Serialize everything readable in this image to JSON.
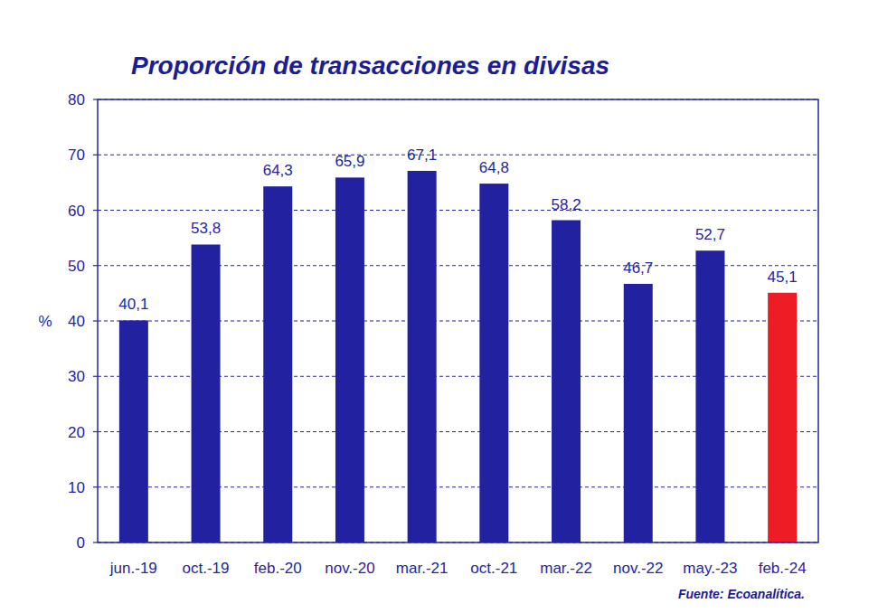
{
  "chart_data": {
    "type": "bar",
    "title": "Proporción de transacciones en divisas",
    "y_label": "%",
    "source": "Fuente: Ecoanalítica.",
    "categories": [
      "jun.-19",
      "oct.-19",
      "feb.-20",
      "nov.-20",
      "mar.-21",
      "oct.-21",
      "mar.-22",
      "nov.-22",
      "may.-23",
      "feb.-24"
    ],
    "values": [
      40.1,
      53.8,
      64.3,
      65.9,
      67.1,
      64.8,
      58.2,
      46.7,
      52.7,
      45.1
    ],
    "value_labels": [
      "40,1",
      "53,8",
      "64,3",
      "65,9",
      "67,1",
      "64,8",
      "58,2",
      "46,7",
      "52,7",
      "45,1"
    ],
    "colors": [
      "#2222a0",
      "#2222a0",
      "#2222a0",
      "#2222a0",
      "#2222a0",
      "#2222a0",
      "#2222a0",
      "#2222a0",
      "#2222a0",
      "#ee1c25"
    ],
    "ylim": [
      0,
      80
    ],
    "yticks": [
      0,
      10,
      20,
      30,
      40,
      50,
      60,
      70,
      80
    ],
    "grid": true,
    "data_labels": true
  }
}
